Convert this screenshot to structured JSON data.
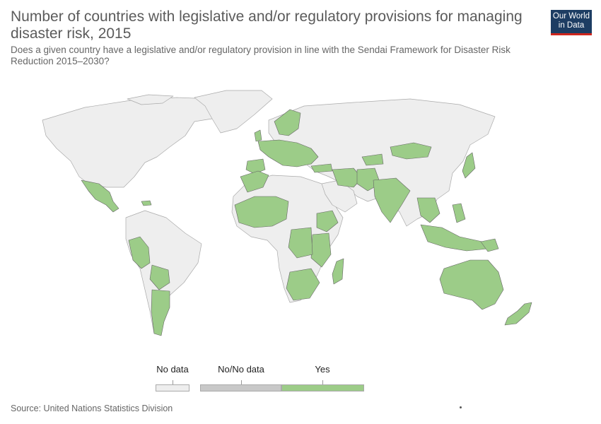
{
  "title": "Number of countries with legislative and/or regulatory provisions for managing disaster risk, 2015",
  "subtitle": "Does a given country have a legislative and/or regulatory provision in line with the Sendai Framework for Disaster Risk Reduction 2015–2030?",
  "logo": {
    "line1": "Our World",
    "line2": "in Data"
  },
  "source": "Source: United Nations Statistics Division",
  "legend": [
    {
      "label": "No data",
      "color": "#eeeeee"
    },
    {
      "label": "No/No data",
      "color": "#c8c8c8"
    },
    {
      "label": "Yes",
      "color": "#9ccc88"
    }
  ],
  "colors": {
    "no_data": "#eeeeee",
    "yes": "#9ccc88",
    "border": "#aaaaaa"
  },
  "map_data": {
    "yes_regions": [
      "Mexico",
      "Central America",
      "Caribbean (Dominican Rep.)",
      "Peru",
      "Bolivia",
      "Paraguay",
      "Argentina",
      "Portugal/Spain",
      "Western & Northern Europe",
      "Scandinavia",
      "Eastern Europe",
      "Turkey",
      "Morocco/Algeria",
      "West Africa (Sahel)",
      "Ethiopia",
      "East Africa",
      "DR Congo",
      "Southern Africa",
      "Madagascar",
      "Iraq/Iran",
      "Afghanistan/Pakistan",
      "India",
      "Kazakhstan region",
      "Mongolia",
      "Japan",
      "Southeast Asia",
      "Indonesia",
      "Philippines",
      "Papua New Guinea",
      "Australia",
      "New Zealand"
    ]
  }
}
